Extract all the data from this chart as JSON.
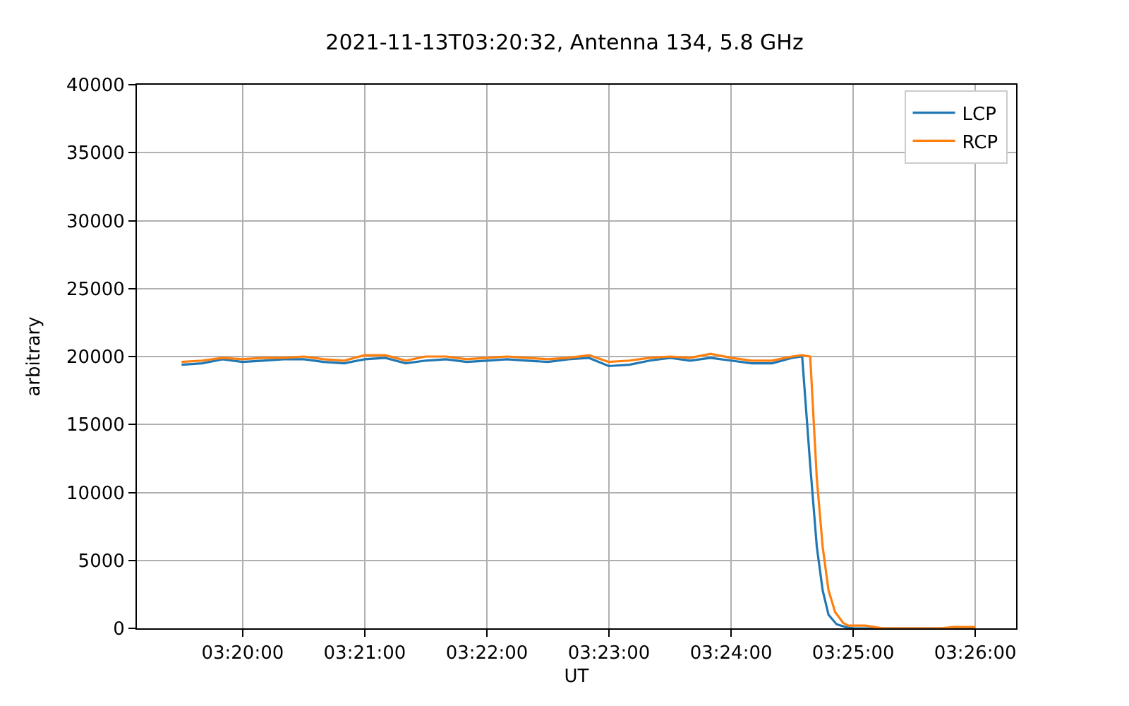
{
  "chart_data": {
    "type": "line",
    "title": "2021-11-13T03:20:32, Antenna 134, 5.8 GHz",
    "xlabel": "UT",
    "ylabel": "arbitrary",
    "xlim": [
      3.3189,
      3.4389
    ],
    "xticks": [
      {
        "value": 3.33333,
        "label": "03:20:00"
      },
      {
        "value": 3.35,
        "label": "03:21:00"
      },
      {
        "value": 3.36667,
        "label": "03:22:00"
      },
      {
        "value": 3.38333,
        "label": "03:23:00"
      },
      {
        "value": 3.4,
        "label": "03:24:00"
      },
      {
        "value": 3.41667,
        "label": "03:25:00"
      },
      {
        "value": 3.43333,
        "label": "03:26:00"
      }
    ],
    "ylim": [
      0,
      40000
    ],
    "yticks": [
      0,
      5000,
      10000,
      15000,
      20000,
      25000,
      30000,
      35000,
      40000
    ],
    "grid": true,
    "legend": "top right",
    "marker": "none",
    "line_style": "solid",
    "series": [
      {
        "name": "LCP",
        "color": "#1f77b4",
        "x": [
          3.325,
          3.3278,
          3.3306,
          3.3333,
          3.3361,
          3.3389,
          3.3417,
          3.3444,
          3.3472,
          3.35,
          3.3528,
          3.3556,
          3.3583,
          3.3611,
          3.3639,
          3.3667,
          3.3694,
          3.3722,
          3.375,
          3.3778,
          3.3806,
          3.3833,
          3.3861,
          3.3889,
          3.3917,
          3.3944,
          3.3972,
          3.4,
          3.4028,
          3.4056,
          3.4083,
          3.4097,
          3.4108,
          3.4117,
          3.4125,
          3.4133,
          3.4144,
          3.4156,
          3.4167,
          3.4222,
          3.4278,
          3.4333
        ],
        "values": [
          19400,
          19500,
          19800,
          19600,
          19700,
          19800,
          19800,
          19600,
          19500,
          19800,
          19900,
          19500,
          19700,
          19800,
          19600,
          19700,
          19800,
          19700,
          19600,
          19800,
          19900,
          19300,
          19400,
          19700,
          19900,
          19700,
          19900,
          19700,
          19500,
          19500,
          19900,
          20000,
          12000,
          6000,
          2800,
          1000,
          300,
          100,
          0,
          0,
          0,
          0
        ]
      },
      {
        "name": "RCP",
        "color": "#ff7f0e",
        "x": [
          3.325,
          3.3278,
          3.3306,
          3.3333,
          3.3361,
          3.3389,
          3.3417,
          3.3444,
          3.3472,
          3.35,
          3.3528,
          3.3556,
          3.3583,
          3.3611,
          3.3639,
          3.3667,
          3.3694,
          3.3722,
          3.375,
          3.3778,
          3.3806,
          3.3833,
          3.3861,
          3.3889,
          3.3917,
          3.3944,
          3.3972,
          3.4,
          3.4028,
          3.4056,
          3.4083,
          3.4097,
          3.4108,
          3.4117,
          3.4125,
          3.4133,
          3.4142,
          3.4153,
          3.416,
          3.4183,
          3.4208,
          3.4256,
          3.4285,
          3.4304,
          3.4333
        ],
        "values": [
          19600,
          19700,
          19900,
          19800,
          19900,
          19900,
          20000,
          19800,
          19700,
          20100,
          20100,
          19700,
          20000,
          20000,
          19800,
          19900,
          20000,
          19900,
          19800,
          19900,
          20100,
          19600,
          19700,
          19900,
          20000,
          19900,
          20200,
          19900,
          19700,
          19700,
          20000,
          20100,
          20000,
          11000,
          6000,
          2800,
          1200,
          400,
          200,
          200,
          0,
          0,
          0,
          100,
          100
        ]
      }
    ]
  }
}
